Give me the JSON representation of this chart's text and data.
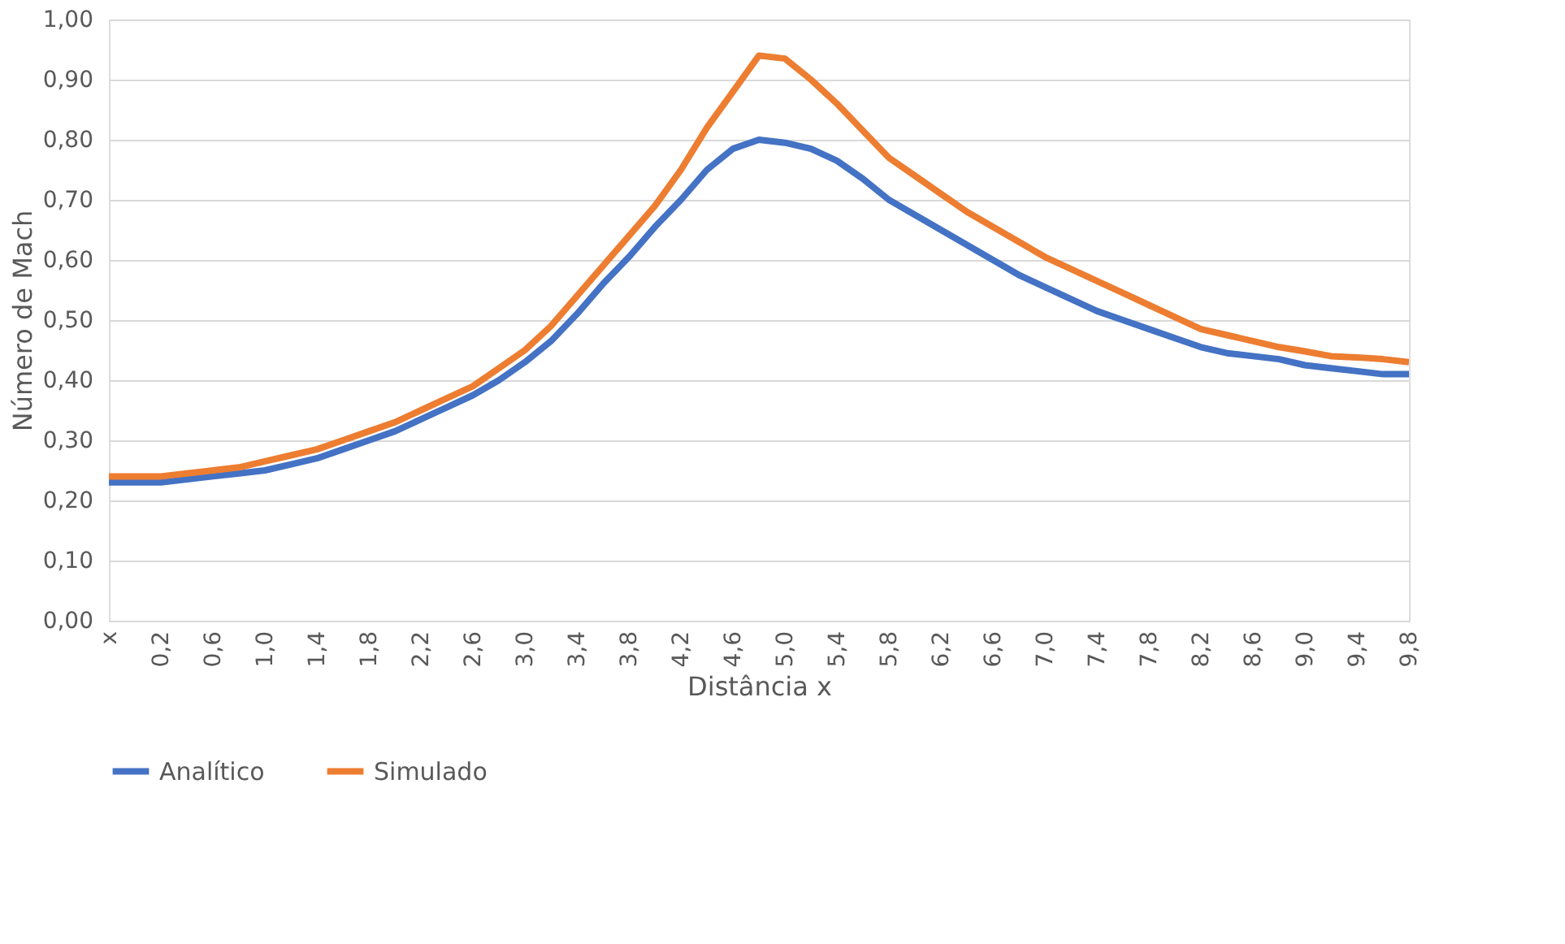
{
  "chart_data": {
    "type": "line",
    "xlabel": "Distância x",
    "ylabel": "Número de Mach",
    "categories": [
      "x",
      null,
      "0,2",
      null,
      "0,6",
      null,
      "1,0",
      null,
      "1,4",
      null,
      "1,8",
      null,
      "2,2",
      null,
      "2,6",
      null,
      "3,0",
      null,
      "3,4",
      null,
      "3,8",
      null,
      "4,2",
      null,
      "4,6",
      null,
      "5,0",
      null,
      "5,4",
      null,
      "5,8",
      null,
      "6,2",
      null,
      "6,6",
      null,
      "7,0",
      null,
      "7,4",
      null,
      "7,8",
      null,
      "8,2",
      null,
      "8,6",
      null,
      "9,0",
      null,
      "9,4",
      null,
      "9,8"
    ],
    "series": [
      {
        "name": "Analítico",
        "color": "#4472c4",
        "values": [
          0.23,
          0.23,
          0.23,
          0.235,
          0.24,
          0.245,
          0.25,
          0.26,
          0.27,
          0.285,
          0.3,
          0.315,
          0.335,
          0.355,
          0.375,
          0.4,
          0.43,
          0.465,
          0.51,
          0.56,
          0.605,
          0.655,
          0.7,
          0.75,
          0.785,
          0.8,
          0.795,
          0.785,
          0.765,
          0.735,
          0.7,
          0.675,
          0.65,
          0.625,
          0.6,
          0.575,
          0.555,
          0.535,
          0.515,
          0.5,
          0.485,
          0.47,
          0.455,
          0.445,
          0.44,
          0.435,
          0.425,
          0.42,
          0.415,
          0.41,
          0.41
        ]
      },
      {
        "name": "Simulado",
        "color": "#ed7d31",
        "values": [
          0.24,
          0.24,
          0.24,
          0.245,
          0.25,
          0.255,
          0.265,
          0.275,
          0.285,
          0.3,
          0.315,
          0.33,
          0.35,
          0.37,
          0.39,
          0.42,
          0.45,
          0.49,
          0.54,
          0.59,
          0.64,
          0.69,
          0.75,
          0.82,
          0.88,
          0.94,
          0.935,
          0.9,
          0.86,
          0.815,
          0.77,
          0.74,
          0.71,
          0.68,
          0.655,
          0.63,
          0.605,
          0.585,
          0.565,
          0.545,
          0.525,
          0.505,
          0.485,
          0.475,
          0.465,
          0.455,
          0.448,
          0.44,
          0.438,
          0.435,
          0.43
        ]
      }
    ],
    "ylim": [
      0,
      1
    ],
    "yticks": [
      {
        "value": 0,
        "label": "0,00"
      },
      {
        "value": 0.1,
        "label": "0,10"
      },
      {
        "value": 0.2,
        "label": "0,20"
      },
      {
        "value": 0.3,
        "label": "0,30"
      },
      {
        "value": 0.4,
        "label": "0,40"
      },
      {
        "value": 0.5,
        "label": "0,50"
      },
      {
        "value": 0.6,
        "label": "0,60"
      },
      {
        "value": 0.7,
        "label": "0,70"
      },
      {
        "value": 0.8,
        "label": "0,80"
      },
      {
        "value": 0.9,
        "label": "0,90"
      },
      {
        "value": 1.0,
        "label": "1,00"
      }
    ],
    "grid": "y",
    "legend": "bottom",
    "marker": "none",
    "line_style": "solid"
  }
}
